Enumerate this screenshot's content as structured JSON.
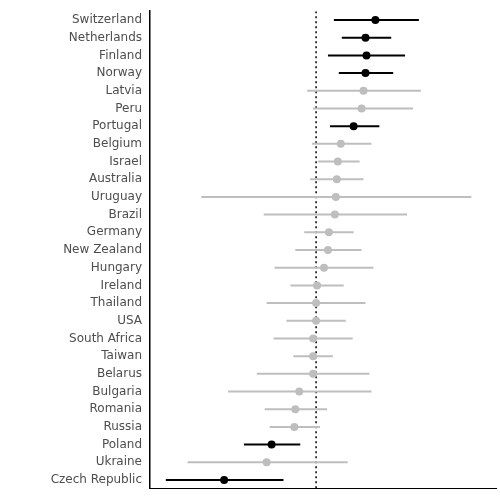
{
  "chart_data": {
    "type": "forest",
    "categories": [
      "Switzerland",
      "Netherlands",
      "Finland",
      "Norway",
      "Latvia",
      "Peru",
      "Portugal",
      "Belgium",
      "Israel",
      "Australia",
      "Uruguay",
      "Brazil",
      "Germany",
      "New Zealand",
      "Hungary",
      "Ireland",
      "Thailand",
      "USA",
      "South Africa",
      "Taiwan",
      "Belarus",
      "Bulgaria",
      "Romania",
      "Russia",
      "Poland",
      "Ukraine",
      "Czech Republic"
    ],
    "values": [
      0.6,
      0.5,
      0.51,
      0.5,
      0.48,
      0.46,
      0.38,
      0.25,
      0.22,
      0.21,
      0.2,
      0.19,
      0.13,
      0.12,
      0.08,
      0.01,
      0.0,
      0.0,
      -0.03,
      -0.03,
      -0.03,
      -0.17,
      -0.21,
      -0.22,
      -0.45,
      -0.5,
      -0.93
    ],
    "ci_low": [
      0.18,
      0.26,
      0.12,
      0.23,
      -0.09,
      -0.03,
      0.14,
      -0.04,
      0.02,
      -0.06,
      -1.16,
      -0.53,
      -0.12,
      -0.21,
      -0.42,
      -0.26,
      -0.5,
      -0.3,
      -0.43,
      -0.23,
      -0.6,
      -0.89,
      -0.52,
      -0.47,
      -0.73,
      -1.3,
      -1.52
    ],
    "ci_high": [
      1.04,
      0.76,
      0.9,
      0.78,
      1.06,
      0.98,
      0.64,
      0.56,
      0.44,
      0.48,
      1.57,
      0.92,
      0.38,
      0.46,
      0.58,
      0.28,
      0.5,
      0.3,
      0.37,
      0.17,
      0.54,
      0.56,
      0.11,
      0.04,
      -0.16,
      0.32,
      -0.33
    ],
    "colors": [
      "#000000",
      "#000000",
      "#000000",
      "#000000",
      "#bebebe",
      "#bebebe",
      "#000000",
      "#bebebe",
      "#bebebe",
      "#bebebe",
      "#bebebe",
      "#bebebe",
      "#bebebe",
      "#bebebe",
      "#bebebe",
      "#bebebe",
      "#bebebe",
      "#bebebe",
      "#bebebe",
      "#bebebe",
      "#bebebe",
      "#bebebe",
      "#bebebe",
      "#bebebe",
      "#000000",
      "#bebebe",
      "#000000"
    ],
    "reference_x": 0,
    "xlim": [
      -1.68,
      1.82
    ],
    "orientation": "horizontal",
    "tick_labels": "y",
    "grid": false
  }
}
